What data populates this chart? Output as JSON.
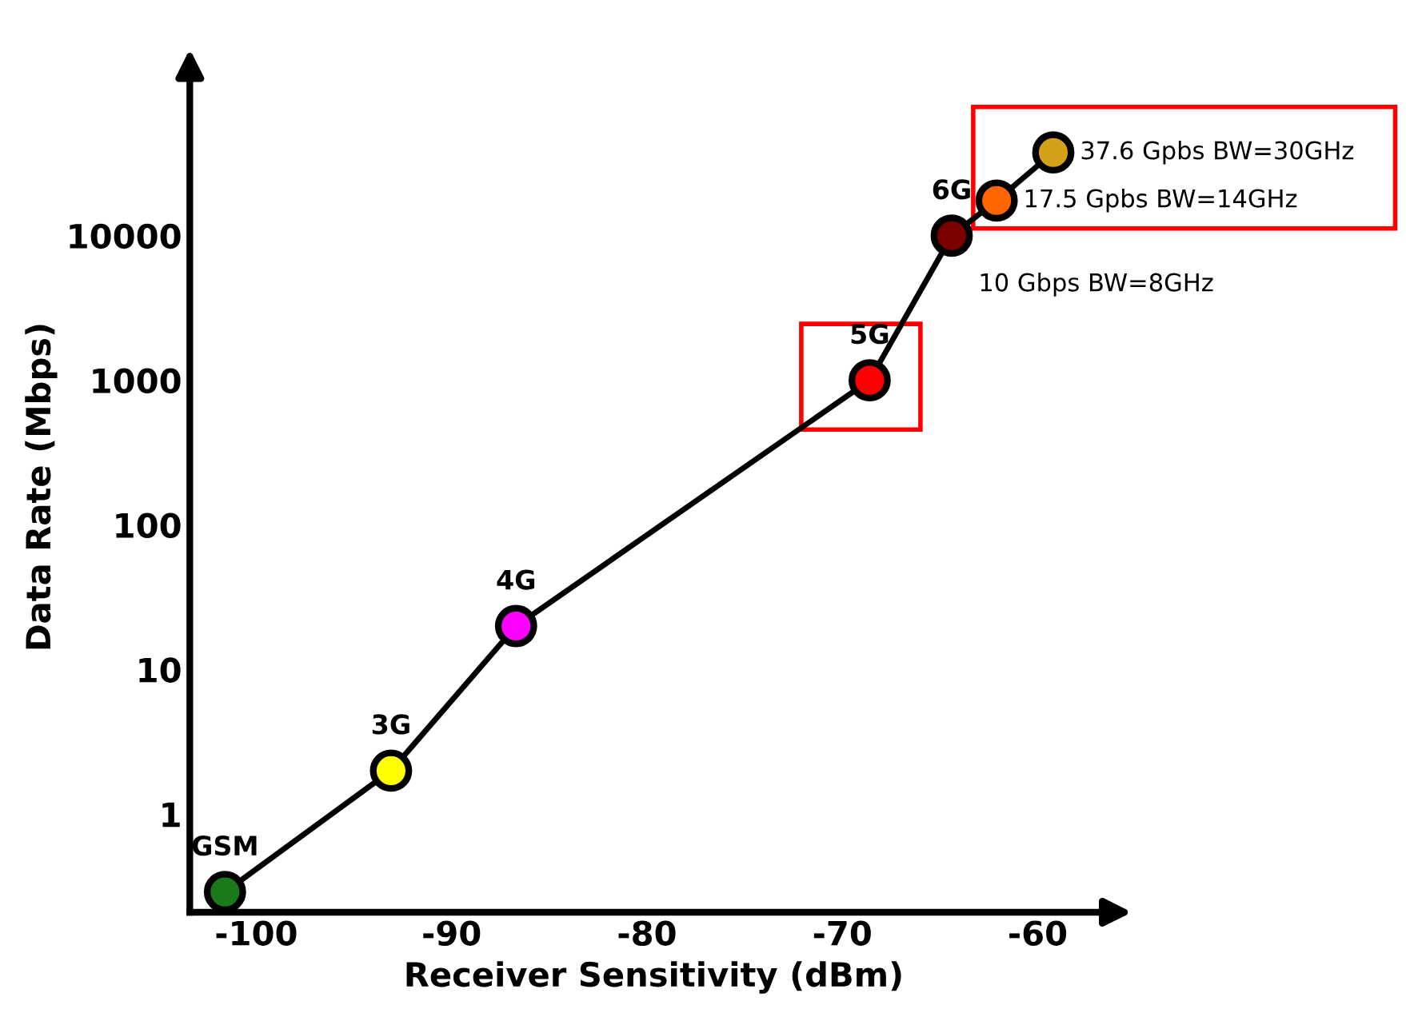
{
  "chart_data": {
    "type": "line",
    "xlabel": "Receiver Sensitivity (dBm)",
    "ylabel": "Data Rate (Mbps)",
    "x": [
      -101.6,
      -93.1,
      -86.7,
      -68.6,
      -64.4,
      -62.1,
      -59.2
    ],
    "values": [
      0.29,
      2,
      20,
      1000,
      10000,
      17500,
      37600
    ],
    "colors": [
      "#1a7a1a",
      "#ffff00",
      "#ff00ff",
      "#ff0000",
      "#7a0000",
      "#ff6600",
      "#d4a017"
    ],
    "marker": "circle",
    "line_style": "solid",
    "log": "y",
    "grid": false,
    "xlim": [
      -103.4,
      -55.9
    ],
    "ylim": [
      0.21,
      160000
    ],
    "xticks": [
      -100,
      -90,
      -80,
      -70,
      -60
    ],
    "yticks": [
      1,
      10,
      100,
      1000,
      10000
    ],
    "annotations": [
      {
        "text": "GSM",
        "x": -101.6,
        "y": 0.29
      },
      {
        "text": "3G",
        "x": -93.1,
        "y": 2
      },
      {
        "text": "4G",
        "x": -86.7,
        "y": 20
      },
      {
        "text": "5G",
        "x": -68.6,
        "y": 1000
      },
      {
        "text": "6G",
        "x": -64.4,
        "y": 10000
      },
      {
        "text": "10 Gbps BW=8GHz",
        "x": -64.4,
        "y": 10000
      },
      {
        "text": "17.5 Gpbs BW=14GHz",
        "x": -62.1,
        "y": 17500
      },
      {
        "text": "37.6 Gpbs BW=30GHz",
        "x": -59.2,
        "y": 37600
      }
    ]
  }
}
